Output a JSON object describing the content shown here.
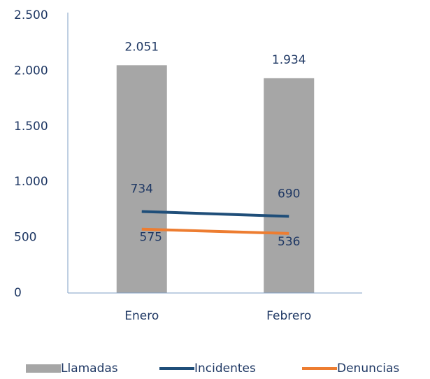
{
  "chart_data": {
    "type": "combo",
    "categories": [
      "Enero",
      "Febrero"
    ],
    "series": [
      {
        "name": "Llamadas",
        "type": "bar",
        "color": "#a6a6a6",
        "values": [
          2051,
          1934
        ],
        "value_labels": [
          "2.051",
          "1.934"
        ]
      },
      {
        "name": "Incidentes",
        "type": "line",
        "color": "#1f4e79",
        "values": [
          734,
          690
        ]
      },
      {
        "name": "Denuncias",
        "type": "line",
        "color": "#ed7d31",
        "values": [
          575,
          536
        ]
      }
    ],
    "ylim": [
      0,
      2500
    ],
    "yticks": [
      0,
      500,
      {
        "value": 1000,
        "label": "1.000"
      },
      {
        "value": 1500,
        "label": "1.500"
      },
      {
        "value": 2000,
        "label": "2.000"
      },
      {
        "value": 2500,
        "label": "2.500"
      }
    ],
    "grid": false,
    "legend": "bottom"
  }
}
